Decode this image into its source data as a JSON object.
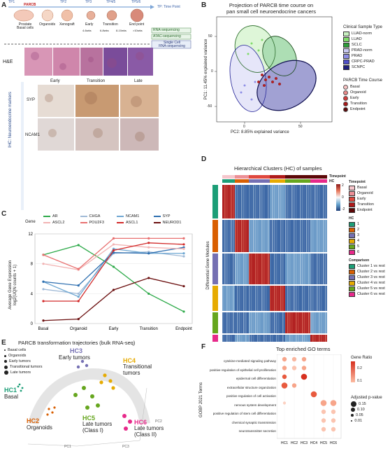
{
  "panels": {
    "A": "A",
    "B": "B",
    "C": "C",
    "D": "D",
    "E": "E",
    "F": "F"
  },
  "panelA": {
    "timepoints": [
      "TP1",
      "TP2",
      "TP3",
      "TP4/5",
      "TP5/6"
    ],
    "tp_note": "TP: Time Point",
    "parcb": "PARCB",
    "stages": [
      "Prostate\nBasal cells",
      "Organoids",
      "Xenograft",
      "Early",
      "Transition",
      "End point"
    ],
    "weeks": [
      "4-6wks",
      "6-8wks",
      "8-10wks",
      ">10wks"
    ],
    "assays": [
      "RNA-sequencing",
      "ATAC-sequencing",
      "Single Cell\nRNA-sequencing"
    ],
    "he_label": "H&E",
    "ihc_cols": [
      "Early",
      "Transition",
      "Late"
    ],
    "ihc_rows": [
      "SYP",
      "NCAM1"
    ],
    "ihc_axis": "IHC: Neuroendocrine markers"
  },
  "panelB": {
    "title": "Projection of PARCB time course on\npan small cell neuroendocrine cancers",
    "legend_title": "Clinical Sample Type",
    "sample_types": [
      {
        "name": "LUAD-norm",
        "color": "#c8f0c0"
      },
      {
        "name": "LUAD",
        "color": "#7fdc6a"
      },
      {
        "name": "SCLC",
        "color": "#2f9e3a"
      },
      {
        "name": "PRAD-norm",
        "color": "#c9c9f2"
      },
      {
        "name": "PRAD",
        "color": "#8e8ee6"
      },
      {
        "name": "CRPC-PRAD",
        "color": "#5050c8"
      },
      {
        "name": "SCNPC",
        "color": "#1f1f7a"
      }
    ],
    "tc_title": "PARCB Time Course",
    "time_course": [
      {
        "name": "Basal",
        "color": "#f7c2c2"
      },
      {
        "name": "Organoid",
        "color": "#e88a8a"
      },
      {
        "name": "Early",
        "color": "#d23c3c"
      },
      {
        "name": "Transition",
        "color": "#a81818"
      },
      {
        "name": "Endpoint",
        "color": "#5a0a0a"
      }
    ],
    "xlabel": "PC2: 8.85% explained variance",
    "ylabel": "PC1: 11.45% explained variance",
    "xticks": [
      "0",
      "50"
    ],
    "yticks": [
      "50",
      "0",
      "-50"
    ]
  },
  "panelC": {
    "gene_label": "Gene",
    "genes": [
      {
        "name": "AR",
        "color": "#2eaa4a"
      },
      {
        "name": "CHGA",
        "color": "#9fb9d6"
      },
      {
        "name": "NCAM1",
        "color": "#6ea7d2"
      },
      {
        "name": "SYP",
        "color": "#2e6fb0"
      },
      {
        "name": "ASCL2",
        "color": "#f2b3b3"
      },
      {
        "name": "POU2F3",
        "color": "#e87070"
      },
      {
        "name": "ASCL1",
        "color": "#d22a2a"
      },
      {
        "name": "NEUROD1",
        "color": "#6b0f0f"
      }
    ],
    "ylabel": "Average Gene Expression\nlog2(UQN counts + 1)"
  },
  "panelD": {
    "title": "Hierarchical Clusters (HC) of samples",
    "timepoint_label": "Timepoint",
    "hc_label": "HC",
    "row_title": "Differential Gene Modules",
    "legend_timepoint_title": "Timepoint",
    "legend_timepoint": [
      {
        "name": "Basal",
        "color": "#f6c6cc"
      },
      {
        "name": "Organoid",
        "color": "#ec8f96"
      },
      {
        "name": "Early",
        "color": "#e0483e"
      },
      {
        "name": "Transition",
        "color": "#b01a1a"
      },
      {
        "name": "Endpoint",
        "color": "#5c0707"
      }
    ],
    "legend_hc_title": "HC",
    "legend_hc": [
      {
        "name": "1",
        "color": "#1c9e77"
      },
      {
        "name": "2",
        "color": "#d95f02"
      },
      {
        "name": "3",
        "color": "#7570b3"
      },
      {
        "name": "4",
        "color": "#e6ab02"
      },
      {
        "name": "5",
        "color": "#66a61e"
      },
      {
        "name": "6",
        "color": "#e7298a"
      }
    ],
    "legend_cmp_title": "Comparison",
    "legend_cmp": [
      {
        "name": "Cluster 1 vs rest",
        "color": "#1c9e77"
      },
      {
        "name": "Cluster 2 vs rest",
        "color": "#d95f02"
      },
      {
        "name": "Cluster 3 vs rest",
        "color": "#7570b3"
      },
      {
        "name": "Cluster 4 vs rest",
        "color": "#e6ab02"
      },
      {
        "name": "Cluster 5 vs rest",
        "color": "#66a61e"
      },
      {
        "name": "Cluster 6 vs rest",
        "color": "#e7298a"
      }
    ],
    "scale_ticks": [
      "2",
      "0",
      "-2"
    ]
  },
  "panelE": {
    "title": "PARCB transformation trajectories (bulk RNA-seq)",
    "legend": [
      "Basal cells",
      "Organoids",
      "Early tumors",
      "Transitional tumors",
      "Late tumors"
    ],
    "hc1": "HC1",
    "hc1_desc": "Basal",
    "hc2": "HC2",
    "hc2_desc": "Organoids",
    "hc3": "HC3",
    "hc3_desc": "Early tumors",
    "hc4": "HC4",
    "hc4_desc": "Transitional\ntumors",
    "hc5": "HC5",
    "hc5_desc": "Late tumors\n(Class I)",
    "hc6": "HC6",
    "hc6_desc": "Late tumors\n(Class II)",
    "axes": [
      "PC1",
      "PC2",
      "PC3"
    ]
  },
  "panelF": {
    "title": "Top enriched GO terms",
    "ylabel": "GOBP 2021 Terms",
    "terms": [
      "cytokine-mediated signaling pathway",
      "positive regulation of epithelial cell proliferation",
      "epidermal cell differentiation",
      "extracellular structure organization",
      "positive regulation of cell activation",
      "nervous system development",
      "positive regulation of stem cell differentiation",
      "chemical synaptic transmission",
      "neurotransmitter secretion"
    ],
    "clusters": [
      "HC1",
      "HC2",
      "HC3",
      "HC4",
      "HC5",
      "HC6"
    ],
    "ratio_title": "Gene Ratio",
    "ratio_ticks": [
      "0.2",
      "0.1"
    ],
    "p_title": "Adjusted p-value",
    "p_ticks": [
      "0.15",
      "0.10",
      "0.05",
      "0.01"
    ]
  },
  "chart_data": [
    {
      "type": "line",
      "categories": [
        "Basal",
        "Organoid",
        "Early",
        "Transition",
        "Endpoint"
      ],
      "ylabel": "Average Gene Expression log2(UQN counts + 1)",
      "yticks": [
        0,
        4,
        8,
        12
      ],
      "ylim": [
        0,
        12
      ],
      "series": [
        {
          "name": "AR",
          "values": [
            9.2,
            10.5,
            7.6,
            4.0,
            1.6
          ]
        },
        {
          "name": "CHGA",
          "values": [
            4.6,
            4.0,
            9.4,
            9.6,
            9.0
          ]
        },
        {
          "name": "NCAM1",
          "values": [
            5.6,
            3.6,
            10.0,
            9.4,
            9.4
          ]
        },
        {
          "name": "SYP",
          "values": [
            5.6,
            5.1,
            9.5,
            9.4,
            10.2
          ]
        },
        {
          "name": "ASCL2",
          "values": [
            8.0,
            7.2,
            10.6,
            10.2,
            10.0
          ]
        },
        {
          "name": "POU2F3",
          "values": [
            9.2,
            7.3,
            11.4,
            11.4,
            11.4
          ]
        },
        {
          "name": "ASCL1",
          "values": [
            3.0,
            3.0,
            9.8,
            10.8,
            10.6
          ]
        },
        {
          "name": "NEUROD1",
          "values": [
            0.4,
            0.6,
            4.5,
            6.1,
            5.0
          ]
        }
      ]
    }
  ]
}
